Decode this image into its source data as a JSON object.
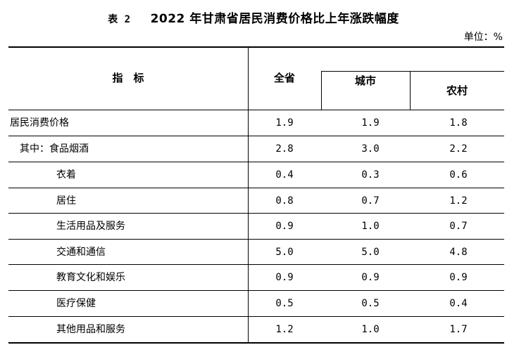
{
  "title": {
    "label": "表 2",
    "text": "2022 年甘肃省居民消费价格比上年涨跌幅度"
  },
  "unit": "单位：%",
  "headers": {
    "indicator": "指　标",
    "province": "全省",
    "city": "城市",
    "rural": "农村"
  },
  "rows": [
    {
      "name": "居民消费价格",
      "province": "1.9",
      "city": "1.9",
      "rural": "1.8"
    },
    {
      "name": "其中：食品烟酒",
      "province": "2.8",
      "city": "3.0",
      "rural": "2.2"
    },
    {
      "name": "衣着",
      "province": "0.4",
      "city": "0.3",
      "rural": "0.6"
    },
    {
      "name": "居住",
      "province": "0.8",
      "city": "0.7",
      "rural": "1.2"
    },
    {
      "name": "生活用品及服务",
      "province": "0.9",
      "city": "1.0",
      "rural": "0.7"
    },
    {
      "name": "交通和通信",
      "province": "5.0",
      "city": "5.0",
      "rural": "4.8"
    },
    {
      "name": "教育文化和娱乐",
      "province": "0.9",
      "city": "0.9",
      "rural": "0.9"
    },
    {
      "name": "医疗保健",
      "province": "0.5",
      "city": "0.5",
      "rural": "0.4"
    },
    {
      "name": "其他用品和服务",
      "province": "1.2",
      "city": "1.0",
      "rural": "1.7"
    }
  ]
}
